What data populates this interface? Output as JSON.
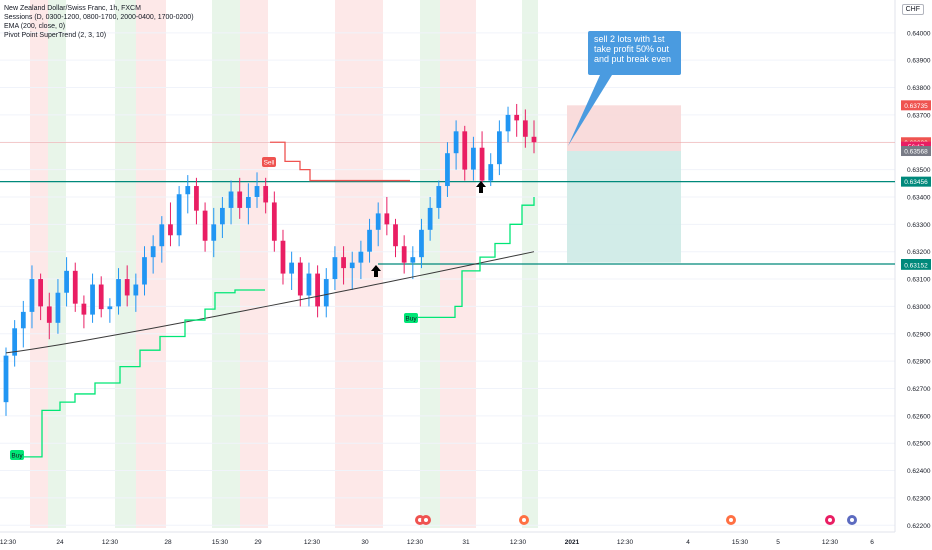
{
  "legend": {
    "symbol": "New Zealand Dollar/Swiss Franc, 1h, FXCM",
    "sessions": "Sessions (D, 0300-1200, 0800-1700, 2000-0400, 1700-0200)",
    "ema": "EMA (200, close, 0)",
    "supertrend": "Pivot Point SuperTrend (2, 3, 10)"
  },
  "currency": "CHF",
  "note": "sell 2 lots with 1st take profit 50% out and put break even",
  "signals": {
    "sell": "Sell",
    "buy": "Buy"
  },
  "price_tags": [
    {
      "label": "0.63735",
      "value": 0.63735,
      "color": "#ef5350"
    },
    {
      "label": "0.63600",
      "value": 0.636,
      "color": "#ef5350"
    },
    {
      "label": "56:17",
      "value": 0.63584,
      "color": "#e91e63"
    },
    {
      "label": "0.63568",
      "value": 0.63568,
      "color": "#787b86"
    },
    {
      "label": "0.63456",
      "value": 0.63456,
      "color": "#00897b"
    },
    {
      "label": "0.63155",
      "value": 0.63155,
      "color": "#00897b"
    },
    {
      "label": "0.63152",
      "value": 0.63152,
      "color": "#00897b"
    }
  ],
  "chart_data": {
    "type": "candlestick",
    "ylim": [
      0.6219,
      0.6412
    ],
    "y_ticks": [
      "0.64000",
      "0.63900",
      "0.63800",
      "0.63700",
      "0.63600",
      "0.63500",
      "0.63400",
      "0.63300",
      "0.63200",
      "0.63100",
      "0.63000",
      "0.62900",
      "0.62800",
      "0.62700",
      "0.62600",
      "0.62500",
      "0.62400",
      "0.62300",
      "0.62200"
    ],
    "x_ticks": [
      "12:30",
      "24",
      "12:30",
      "28",
      "15:30",
      "29",
      "12:30",
      "30",
      "12:30",
      "31",
      "12:30",
      "2021",
      "12:30",
      "4",
      "15:30",
      "5",
      "12:30",
      "6"
    ],
    "ohlc": [
      [
        0.6265,
        0.6285,
        0.626,
        0.6282
      ],
      [
        0.6282,
        0.6295,
        0.6278,
        0.6292
      ],
      [
        0.6292,
        0.6302,
        0.6285,
        0.6298
      ],
      [
        0.6298,
        0.6315,
        0.6292,
        0.631
      ],
      [
        0.631,
        0.6312,
        0.6295,
        0.63
      ],
      [
        0.63,
        0.6305,
        0.6288,
        0.6294
      ],
      [
        0.6294,
        0.631,
        0.629,
        0.6305
      ],
      [
        0.6305,
        0.6318,
        0.63,
        0.6313
      ],
      [
        0.6313,
        0.6316,
        0.6298,
        0.6301
      ],
      [
        0.6301,
        0.6304,
        0.6292,
        0.6297
      ],
      [
        0.6297,
        0.6312,
        0.6294,
        0.6308
      ],
      [
        0.6308,
        0.6311,
        0.6296,
        0.6299
      ],
      [
        0.6299,
        0.6303,
        0.6294,
        0.63
      ],
      [
        0.63,
        0.6314,
        0.6297,
        0.631
      ],
      [
        0.631,
        0.6315,
        0.63,
        0.6304
      ],
      [
        0.6304,
        0.6312,
        0.6298,
        0.6308
      ],
      [
        0.6308,
        0.6322,
        0.6304,
        0.6318
      ],
      [
        0.6318,
        0.6326,
        0.6312,
        0.6322
      ],
      [
        0.6322,
        0.6333,
        0.6316,
        0.633
      ],
      [
        0.633,
        0.6338,
        0.6322,
        0.6326
      ],
      [
        0.6326,
        0.6344,
        0.6322,
        0.6341
      ],
      [
        0.6341,
        0.6348,
        0.6334,
        0.6344
      ],
      [
        0.6344,
        0.6347,
        0.633,
        0.6335
      ],
      [
        0.6335,
        0.6338,
        0.632,
        0.6324
      ],
      [
        0.6324,
        0.6336,
        0.6318,
        0.633
      ],
      [
        0.633,
        0.634,
        0.6325,
        0.6336
      ],
      [
        0.6336,
        0.6346,
        0.633,
        0.6342
      ],
      [
        0.6342,
        0.6347,
        0.6332,
        0.6336
      ],
      [
        0.6336,
        0.6345,
        0.633,
        0.634
      ],
      [
        0.634,
        0.6349,
        0.6336,
        0.6344
      ],
      [
        0.6344,
        0.6347,
        0.6334,
        0.6338
      ],
      [
        0.6338,
        0.6342,
        0.632,
        0.6324
      ],
      [
        0.6324,
        0.6328,
        0.6308,
        0.6312
      ],
      [
        0.6312,
        0.632,
        0.6306,
        0.6316
      ],
      [
        0.6316,
        0.6318,
        0.63,
        0.6304
      ],
      [
        0.6304,
        0.6316,
        0.63,
        0.6312
      ],
      [
        0.6312,
        0.6315,
        0.6296,
        0.63
      ],
      [
        0.63,
        0.6314,
        0.6296,
        0.631
      ],
      [
        0.631,
        0.6322,
        0.6306,
        0.6318
      ],
      [
        0.6318,
        0.6322,
        0.6308,
        0.6314
      ],
      [
        0.6314,
        0.632,
        0.6306,
        0.6316
      ],
      [
        0.6316,
        0.6324,
        0.631,
        0.632
      ],
      [
        0.632,
        0.6332,
        0.6316,
        0.6328
      ],
      [
        0.6328,
        0.6338,
        0.6322,
        0.6334
      ],
      [
        0.6334,
        0.634,
        0.6326,
        0.633
      ],
      [
        0.633,
        0.6332,
        0.6318,
        0.6322
      ],
      [
        0.6322,
        0.6326,
        0.6312,
        0.6316
      ],
      [
        0.6316,
        0.6322,
        0.631,
        0.6318
      ],
      [
        0.6318,
        0.6332,
        0.6314,
        0.6328
      ],
      [
        0.6328,
        0.634,
        0.6324,
        0.6336
      ],
      [
        0.6336,
        0.6346,
        0.6332,
        0.6344
      ],
      [
        0.6344,
        0.636,
        0.634,
        0.6356
      ],
      [
        0.6356,
        0.6368,
        0.635,
        0.6364
      ],
      [
        0.6364,
        0.6366,
        0.6346,
        0.635
      ],
      [
        0.635,
        0.6362,
        0.6346,
        0.6358
      ],
      [
        0.6358,
        0.6364,
        0.6342,
        0.6346
      ],
      [
        0.6346,
        0.6356,
        0.6344,
        0.6352
      ],
      [
        0.6352,
        0.6368,
        0.6348,
        0.6364
      ],
      [
        0.6364,
        0.6373,
        0.636,
        0.637
      ],
      [
        0.637,
        0.6374,
        0.6362,
        0.6368
      ],
      [
        0.6368,
        0.6372,
        0.6358,
        0.6362
      ],
      [
        0.6362,
        0.6368,
        0.6356,
        0.636
      ]
    ]
  }
}
